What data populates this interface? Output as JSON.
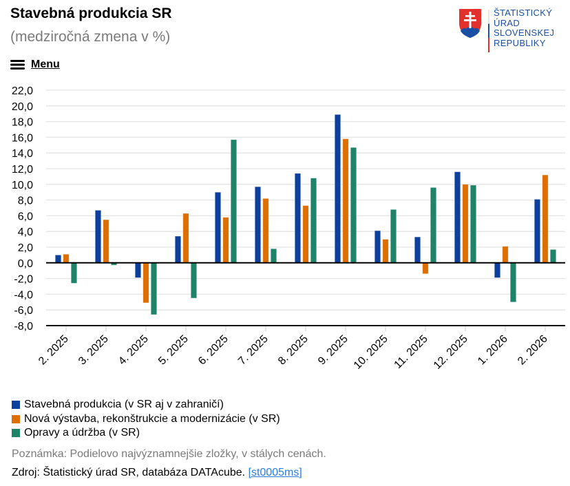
{
  "header": {
    "title": "Stavebná produkcia SR",
    "subtitle": "(medziročná zmena v %)",
    "menu_label": "Menu",
    "menu_icon": "hamburger-icon"
  },
  "logo": {
    "lines": [
      "ŠTATISTICKÝ",
      "ÚRAD",
      "SLOVENSKEJ",
      "REPUBLIKY"
    ],
    "emblem_icon": "slovak-coat-of-arms-icon",
    "text_color": "#1b4fa3"
  },
  "chart_data": {
    "type": "bar",
    "title": "Stavebná produkcia SR",
    "subtitle": "(medziročná zmena v %)",
    "xlabel": "",
    "ylabel": "",
    "ylim": [
      -8,
      22
    ],
    "ytick_step": 2,
    "yticks": [
      "22,0",
      "20,0",
      "18,0",
      "16,0",
      "14,0",
      "12,0",
      "10,0",
      "8,0",
      "6,0",
      "4,0",
      "2,0",
      "0,0",
      "-2,0",
      "-4,0",
      "-6,0",
      "-8,0"
    ],
    "grid": true,
    "legend_position": "bottom-left",
    "categories": [
      "2. 2025",
      "3. 2025",
      "4. 2025",
      "5. 2025",
      "6. 2025",
      "7. 2025",
      "8. 2025",
      "9. 2025",
      "10. 2025",
      "11. 2025",
      "12. 2025",
      "1. 2026",
      "2. 2026"
    ],
    "series": [
      {
        "name": "Stavebná produkcia (v SR aj v zahraničí)",
        "color": "#0d3f9c",
        "values": [
          1.0,
          6.7,
          -1.9,
          3.4,
          9.0,
          9.7,
          11.4,
          18.9,
          4.1,
          3.3,
          11.6,
          -1.9,
          8.1
        ]
      },
      {
        "name": "Nová výstavba, rekonštrukcie a modernizácie (v SR)",
        "color": "#dd6f00",
        "values": [
          1.1,
          5.5,
          -5.1,
          6.3,
          5.8,
          8.2,
          7.3,
          15.8,
          3.0,
          -1.4,
          10.0,
          2.1,
          11.2
        ]
      },
      {
        "name": "Opravy a údržba (v SR)",
        "color": "#1e8369",
        "values": [
          -2.6,
          -0.3,
          -6.6,
          -4.5,
          15.7,
          1.8,
          10.8,
          14.7,
          6.8,
          9.6,
          9.9,
          -5.0,
          1.7
        ]
      }
    ]
  },
  "footer": {
    "note": "Poznámka: Podielovo najvýznamnejšie zložky, v stálych cenách.",
    "source_text": "Zdroj: Štatistický úrad SR, databáza DATAcube. ",
    "source_link": "[st0005ms]"
  }
}
